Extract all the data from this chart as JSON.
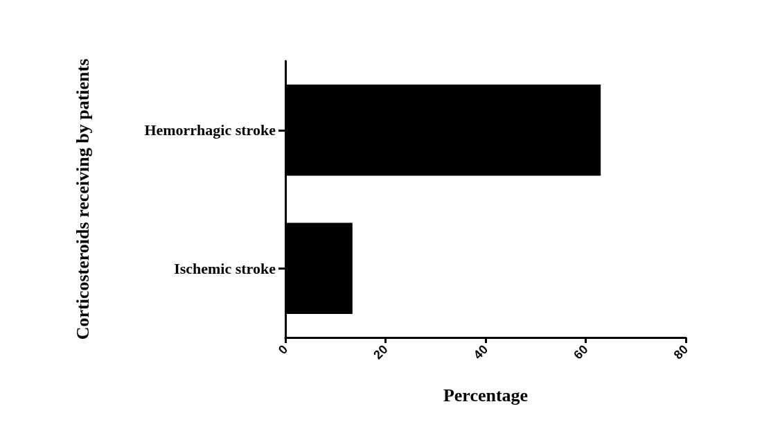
{
  "chart_data": {
    "type": "bar",
    "orientation": "horizontal",
    "xlabel": "Percentage",
    "ylabel": "Corticosteroids receiving by patients",
    "categories": [
      "Hemorrhagic stroke",
      "Ischemic stroke"
    ],
    "values": [
      63,
      13.4
    ],
    "color": "#000000",
    "xlim": [
      0,
      80
    ],
    "xticks": [
      0,
      20,
      40,
      60,
      80
    ]
  }
}
